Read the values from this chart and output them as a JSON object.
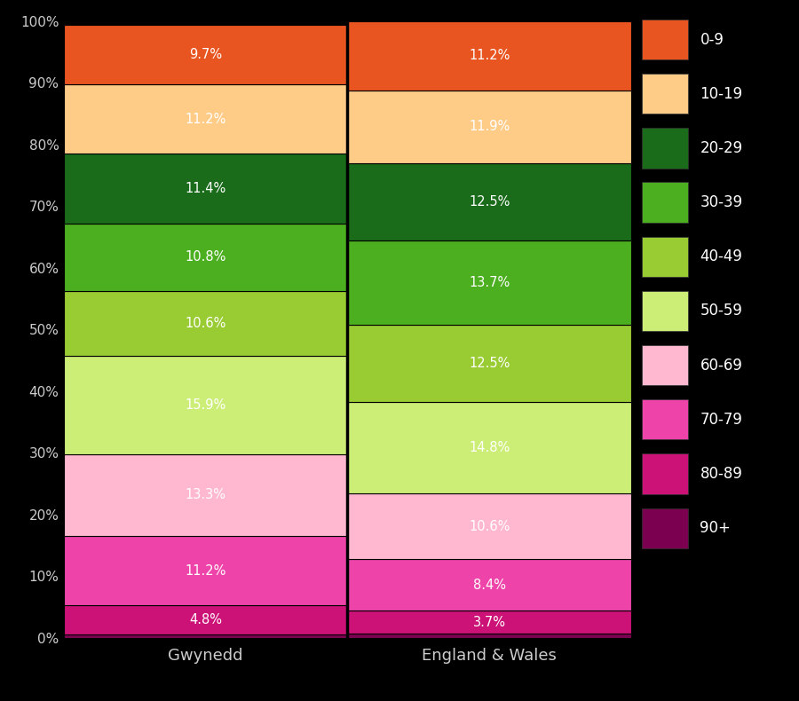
{
  "categories": [
    "Gwynedd",
    "England & Wales"
  ],
  "age_groups": [
    "90+",
    "80-89",
    "70-79",
    "60-69",
    "50-59",
    "40-49",
    "30-39",
    "20-29",
    "10-19",
    "0-9"
  ],
  "values": {
    "Gwynedd": [
      0.5,
      4.8,
      11.2,
      13.3,
      15.9,
      10.6,
      10.8,
      11.4,
      11.2,
      9.7
    ],
    "England & Wales": [
      0.7,
      3.7,
      8.4,
      10.6,
      14.8,
      12.5,
      13.7,
      12.5,
      11.9,
      11.2
    ]
  },
  "labels": {
    "Gwynedd": [
      "",
      "4.8%",
      "11.2%",
      "13.3%",
      "15.9%",
      "10.6%",
      "10.8%",
      "11.4%",
      "11.2%",
      "9.7%"
    ],
    "England & Wales": [
      "",
      "3.7%",
      "8.4%",
      "10.6%",
      "14.8%",
      "12.5%",
      "13.7%",
      "12.5%",
      "11.9%",
      "11.2%"
    ]
  },
  "colors": [
    "#7B0050",
    "#CC1177",
    "#EE44AA",
    "#FFB8D0",
    "#CCEE77",
    "#99CC33",
    "#4CAF20",
    "#1A6B1A",
    "#FFCC88",
    "#E85520"
  ],
  "background_color": "#000000",
  "text_color": "#ffffff",
  "tick_label_color": "#cccccc",
  "segment_line_color": "#000000",
  "legend_labels": [
    "0-9",
    "10-19",
    "20-29",
    "30-39",
    "40-49",
    "50-59",
    "60-69",
    "70-79",
    "80-89",
    "90+"
  ]
}
